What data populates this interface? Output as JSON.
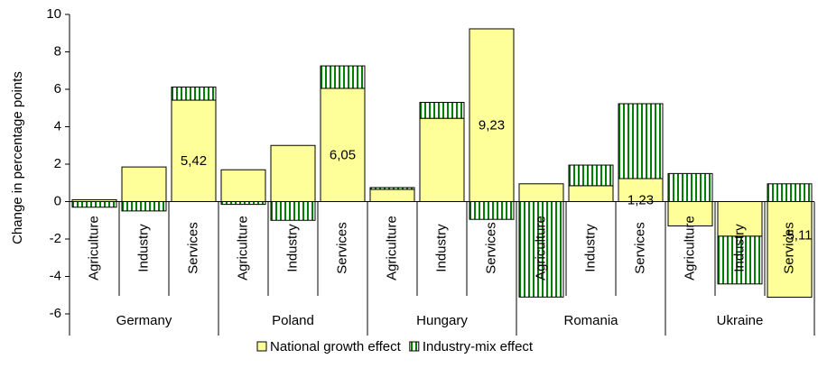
{
  "chart_data": {
    "type": "bar",
    "stacked": true,
    "y_label": "Change in percentage points",
    "categories": [
      "Agriculture",
      "Industry",
      "Services",
      "Agriculture",
      "Industry",
      "Services",
      "Agriculture",
      "Industry",
      "Services",
      "Agriculture",
      "Industry",
      "Services",
      "Agriculture",
      "Industry",
      "Services"
    ],
    "groups": [
      "Germany",
      "Poland",
      "Hungary",
      "Romania",
      "Ukraine"
    ],
    "series": [
      {
        "name": "National growth effect",
        "color": "#ffff99",
        "pattern": "solid",
        "values": [
          0.1,
          1.85,
          5.42,
          1.7,
          3.0,
          6.05,
          0.65,
          4.45,
          9.23,
          0.95,
          0.85,
          1.23,
          -1.3,
          -1.85,
          -5.11
        ],
        "value_labels": [
          null,
          null,
          "5,42",
          null,
          null,
          "6,05",
          null,
          null,
          "9,23",
          null,
          null,
          "1,23",
          null,
          null,
          "-5,11"
        ]
      },
      {
        "name": "Industry-mix effect",
        "color": "#008000",
        "pattern": "vertical-stripes",
        "values": [
          -0.3,
          -0.5,
          0.7,
          -0.15,
          -1.0,
          1.2,
          0.1,
          0.85,
          -0.95,
          -5.1,
          1.1,
          4.0,
          1.5,
          -2.55,
          0.95
        ]
      }
    ],
    "ylim": [
      -6,
      10
    ],
    "yticks": [
      -6,
      -4,
      -2,
      0,
      2,
      4,
      6,
      8,
      10
    ],
    "grid": false,
    "legend": "bottom"
  }
}
